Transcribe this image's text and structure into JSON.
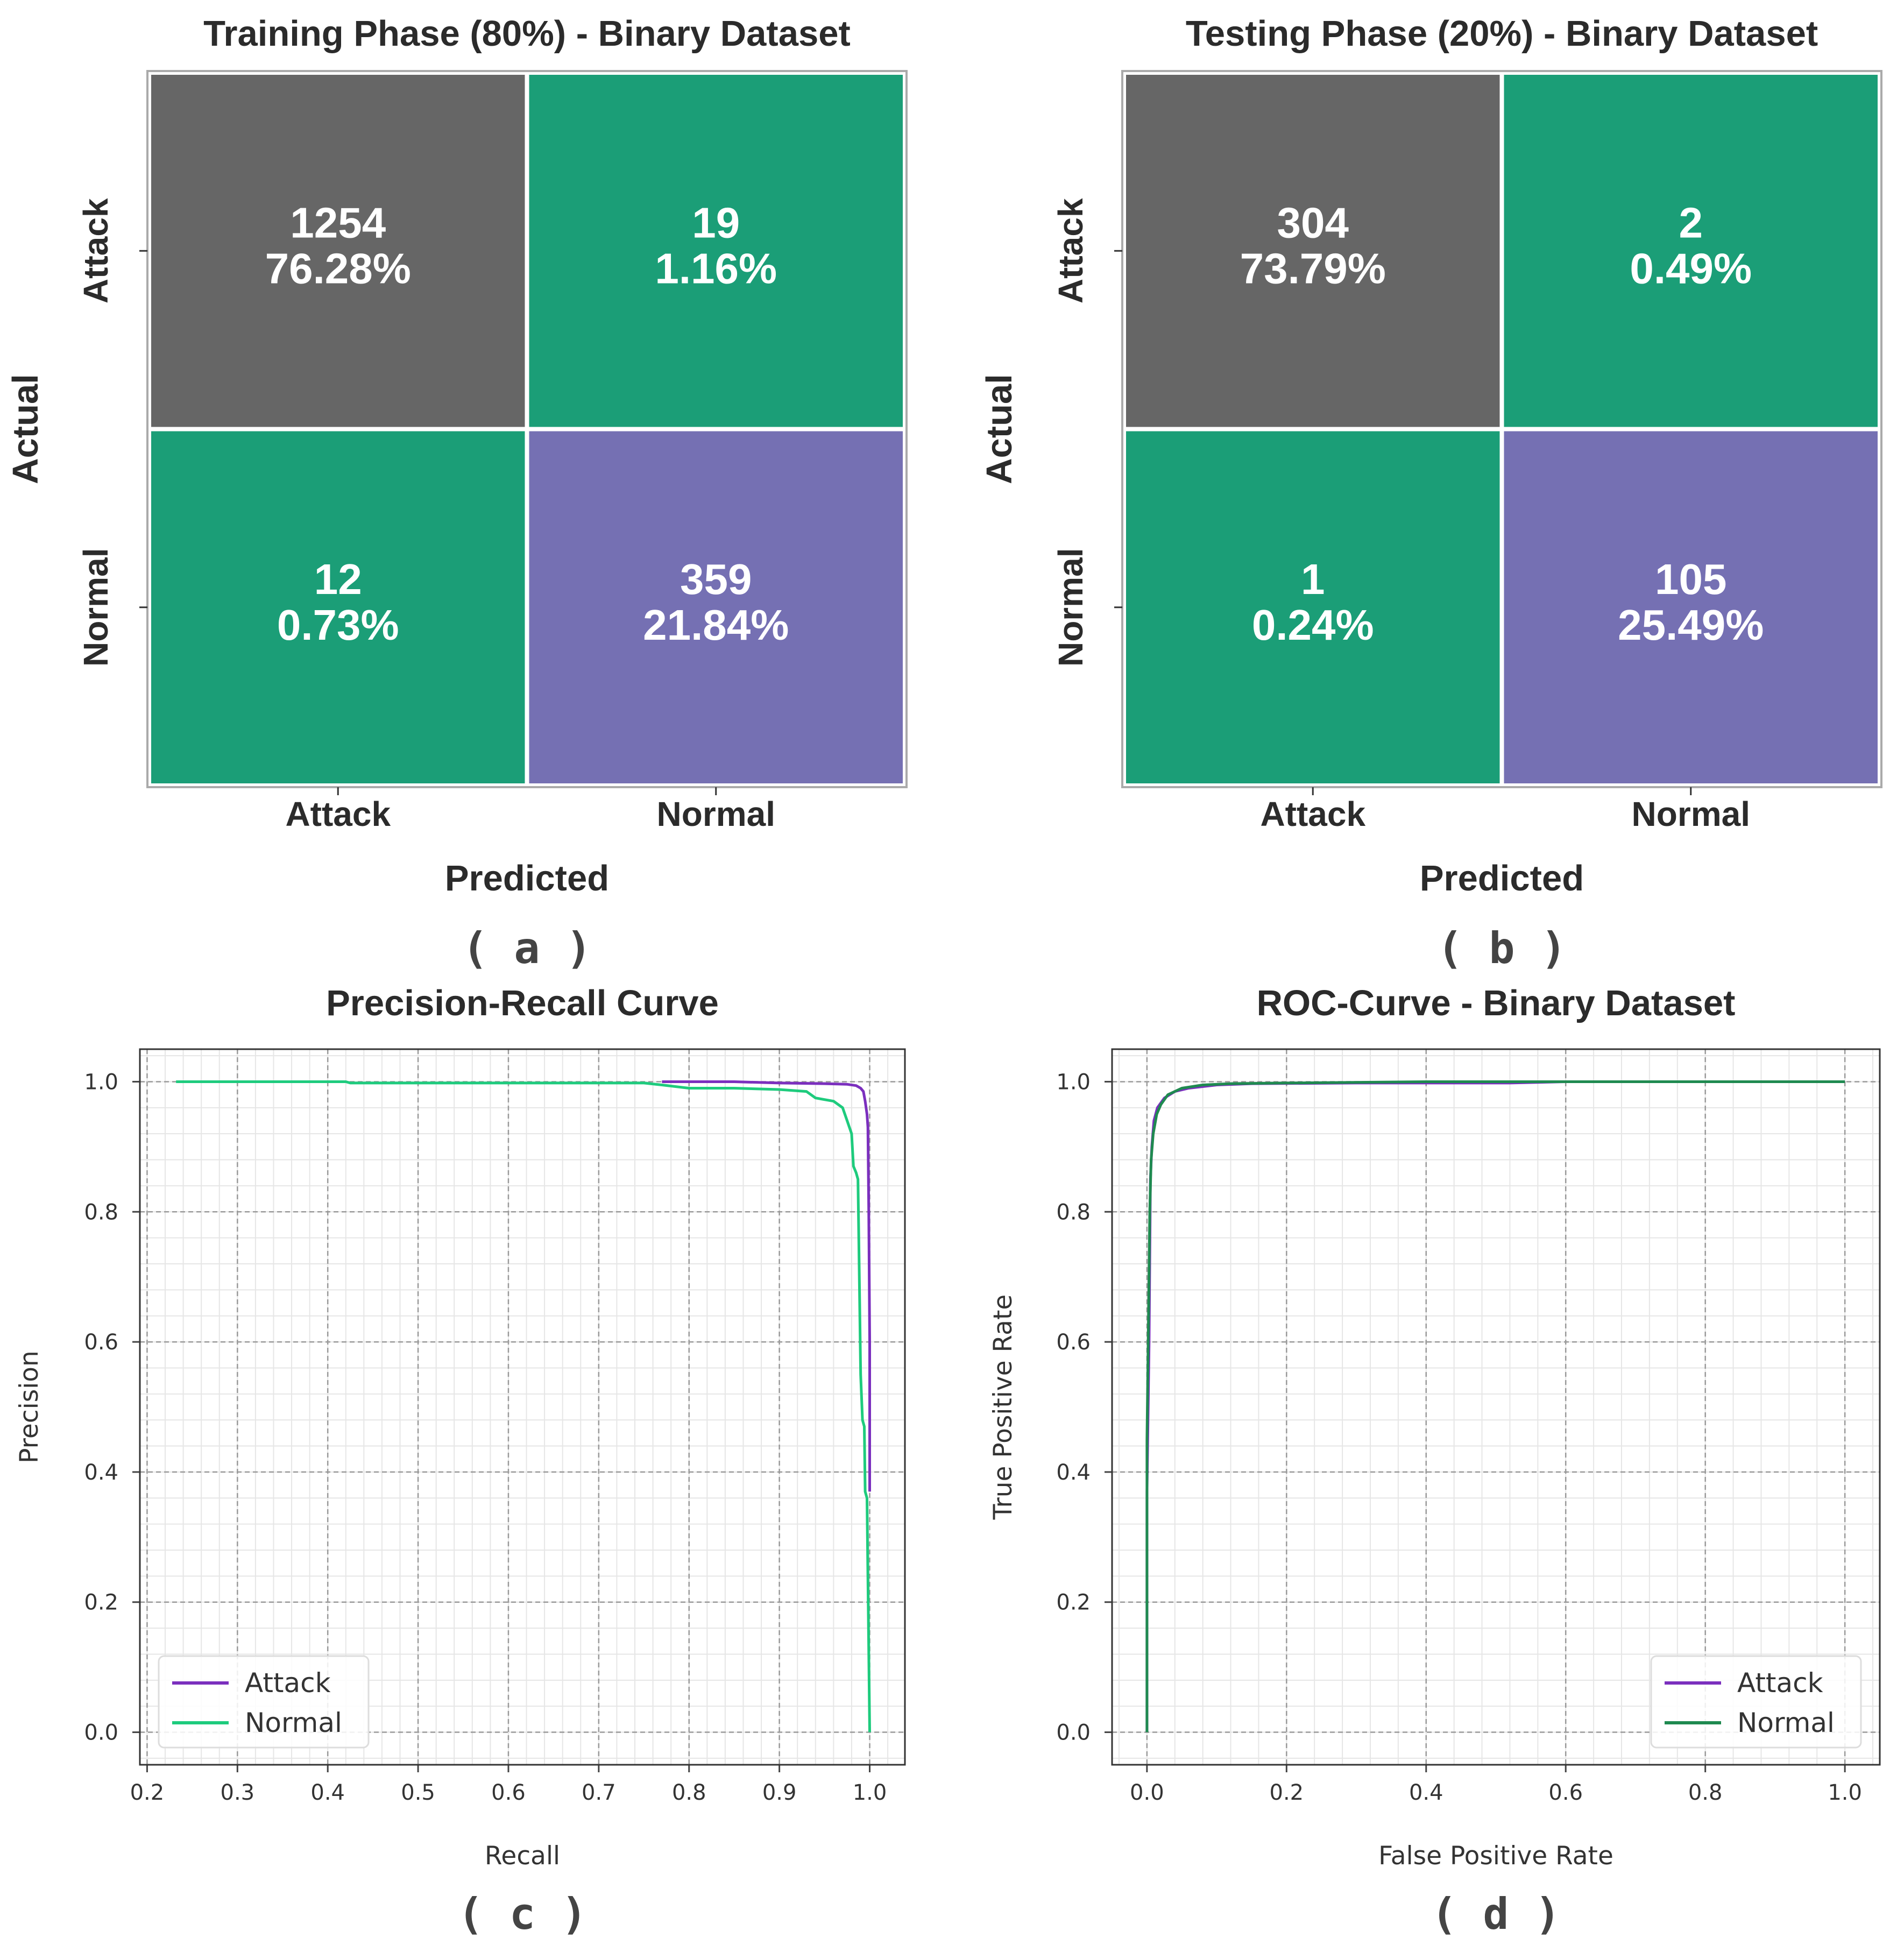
{
  "panels": [
    {
      "label": "( a )",
      "chart_data": {
        "type": "heatmap",
        "title": "Training Phase (80%) - Binary Dataset",
        "xlabel": "Predicted",
        "ylabel": "Actual",
        "x_categories": [
          "Attack",
          "Normal"
        ],
        "y_categories": [
          "Attack",
          "Normal"
        ],
        "cells": [
          {
            "row": 0,
            "col": 0,
            "count": "1254",
            "percent": "76.28%",
            "color": "#666666"
          },
          {
            "row": 0,
            "col": 1,
            "count": "19",
            "percent": "1.16%",
            "color": "#1b9e77"
          },
          {
            "row": 1,
            "col": 0,
            "count": "12",
            "percent": "0.73%",
            "color": "#1b9e77"
          },
          {
            "row": 1,
            "col": 1,
            "count": "359",
            "percent": "21.84%",
            "color": "#7570b3"
          }
        ]
      }
    },
    {
      "label": "( b )",
      "chart_data": {
        "type": "heatmap",
        "title": "Testing Phase (20%) - Binary Dataset",
        "xlabel": "Predicted",
        "ylabel": "Actual",
        "x_categories": [
          "Attack",
          "Normal"
        ],
        "y_categories": [
          "Attack",
          "Normal"
        ],
        "cells": [
          {
            "row": 0,
            "col": 0,
            "count": "304",
            "percent": "73.79%",
            "color": "#666666"
          },
          {
            "row": 0,
            "col": 1,
            "count": "2",
            "percent": "0.49%",
            "color": "#1b9e77"
          },
          {
            "row": 1,
            "col": 0,
            "count": "1",
            "percent": "0.24%",
            "color": "#1b9e77"
          },
          {
            "row": 1,
            "col": 1,
            "count": "105",
            "percent": "25.49%",
            "color": "#7570b3"
          }
        ]
      }
    },
    {
      "label": "( c )",
      "chart_data": {
        "type": "line",
        "title": "Precision-Recall Curve",
        "xlabel": "Recall",
        "ylabel": "Precision",
        "xlim": [
          0.192,
          1.039
        ],
        "ylim": [
          -0.05,
          1.05
        ],
        "xticks": [
          0.2,
          0.3,
          0.4,
          0.5,
          0.6,
          0.7,
          0.8,
          0.9,
          1.0
        ],
        "xtick_labels": [
          "0.2",
          "0.3",
          "0.4",
          "0.5",
          "0.6",
          "0.7",
          "0.8",
          "0.9",
          "1.0"
        ],
        "yticks": [
          0.0,
          0.2,
          0.4,
          0.6,
          0.8,
          1.0
        ],
        "ytick_labels": [
          "0.0",
          "0.2",
          "0.4",
          "0.6",
          "0.8",
          "1.0"
        ],
        "grid": true,
        "legend_position": "lower-left",
        "series": [
          {
            "name": "Attack",
            "color": "#7b2fbe",
            "x": [
              0.77,
              0.85,
              0.9,
              0.95,
              0.975,
              0.985,
              0.99,
              0.993,
              0.995,
              0.997,
              0.998,
              0.999,
              1.0,
              1.0
            ],
            "y": [
              1.0,
              1.0,
              0.998,
              0.997,
              0.996,
              0.994,
              0.99,
              0.985,
              0.97,
              0.95,
              0.93,
              0.8,
              0.6,
              0.37
            ]
          },
          {
            "name": "Normal",
            "color": "#1ecb7d",
            "x": [
              0.232,
              0.42,
              0.425,
              0.75,
              0.77,
              0.8,
              0.85,
              0.9,
              0.93,
              0.94,
              0.96,
              0.97,
              0.975,
              0.98,
              0.982,
              0.985,
              0.987,
              0.988,
              0.99,
              0.992,
              0.994,
              0.995,
              0.997,
              1.0
            ],
            "y": [
              1.0,
              1.0,
              0.998,
              0.998,
              0.995,
              0.99,
              0.99,
              0.988,
              0.985,
              0.975,
              0.97,
              0.96,
              0.94,
              0.92,
              0.87,
              0.86,
              0.85,
              0.75,
              0.55,
              0.48,
              0.47,
              0.37,
              0.36,
              0.0
            ]
          }
        ]
      }
    },
    {
      "label": "( d )",
      "chart_data": {
        "type": "line",
        "title": "ROC-Curve - Binary Dataset",
        "xlabel": "False Positive Rate",
        "ylabel": "True Positive Rate",
        "xlim": [
          -0.05,
          1.05
        ],
        "ylim": [
          -0.05,
          1.05
        ],
        "xticks": [
          0.0,
          0.2,
          0.4,
          0.6,
          0.8,
          1.0
        ],
        "xtick_labels": [
          "0.0",
          "0.2",
          "0.4",
          "0.6",
          "0.8",
          "1.0"
        ],
        "yticks": [
          0.0,
          0.2,
          0.4,
          0.6,
          0.8,
          1.0
        ],
        "ytick_labels": [
          "0.0",
          "0.2",
          "0.4",
          "0.6",
          "0.8",
          "1.0"
        ],
        "grid": true,
        "legend_position": "lower-right",
        "series": [
          {
            "name": "Attack",
            "color": "#7b2fbe",
            "x": [
              0.0,
              0.0,
              0.003,
              0.005,
              0.007,
              0.01,
              0.015,
              0.025,
              0.04,
              0.06,
              0.1,
              0.15,
              0.3,
              0.52,
              0.6,
              1.0
            ],
            "y": [
              0.0,
              0.37,
              0.6,
              0.85,
              0.9,
              0.94,
              0.96,
              0.975,
              0.985,
              0.99,
              0.995,
              0.997,
              0.998,
              0.998,
              1.0,
              1.0
            ]
          },
          {
            "name": "Normal",
            "color": "#1f8a50",
            "x": [
              0.0,
              0.0,
              0.002,
              0.004,
              0.006,
              0.009,
              0.014,
              0.02,
              0.03,
              0.05,
              0.08,
              0.12,
              0.2,
              0.4,
              1.0
            ],
            "y": [
              0.0,
              0.45,
              0.62,
              0.8,
              0.88,
              0.92,
              0.95,
              0.965,
              0.98,
              0.99,
              0.995,
              0.997,
              0.998,
              1.0,
              1.0
            ]
          }
        ]
      }
    }
  ]
}
